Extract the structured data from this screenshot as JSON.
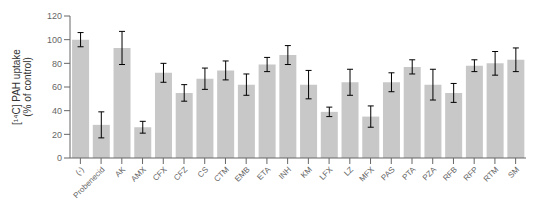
{
  "chart_data": {
    "type": "bar",
    "ylabel": "[¹⁴C] PAH uptake\n(% of control)",
    "categories": [
      "(-)",
      "Probenecid",
      "AK",
      "AMX",
      "CFX",
      "CFZ",
      "CS",
      "CTM",
      "EMB",
      "ETA",
      "INH",
      "KM",
      "LFX",
      "LZ",
      "MFX",
      "PAS",
      "PTA",
      "PZA",
      "RFB",
      "RFP",
      "RTM",
      "SM"
    ],
    "values": [
      100,
      28,
      93,
      26,
      72,
      55,
      67,
      74,
      62,
      79,
      87,
      62,
      39,
      64,
      35,
      64,
      77,
      62,
      55,
      78,
      80,
      83
    ],
    "errors": [
      6,
      11,
      14,
      5,
      8,
      7,
      9,
      8,
      9,
      6,
      8,
      12,
      4,
      11,
      9,
      8,
      6,
      13,
      8,
      5,
      10,
      10
    ],
    "color": "#c8c8c8",
    "ylim": [
      0,
      120
    ],
    "yticks": [
      0,
      20,
      40,
      60,
      80,
      100,
      120
    ],
    "grid": false
  }
}
